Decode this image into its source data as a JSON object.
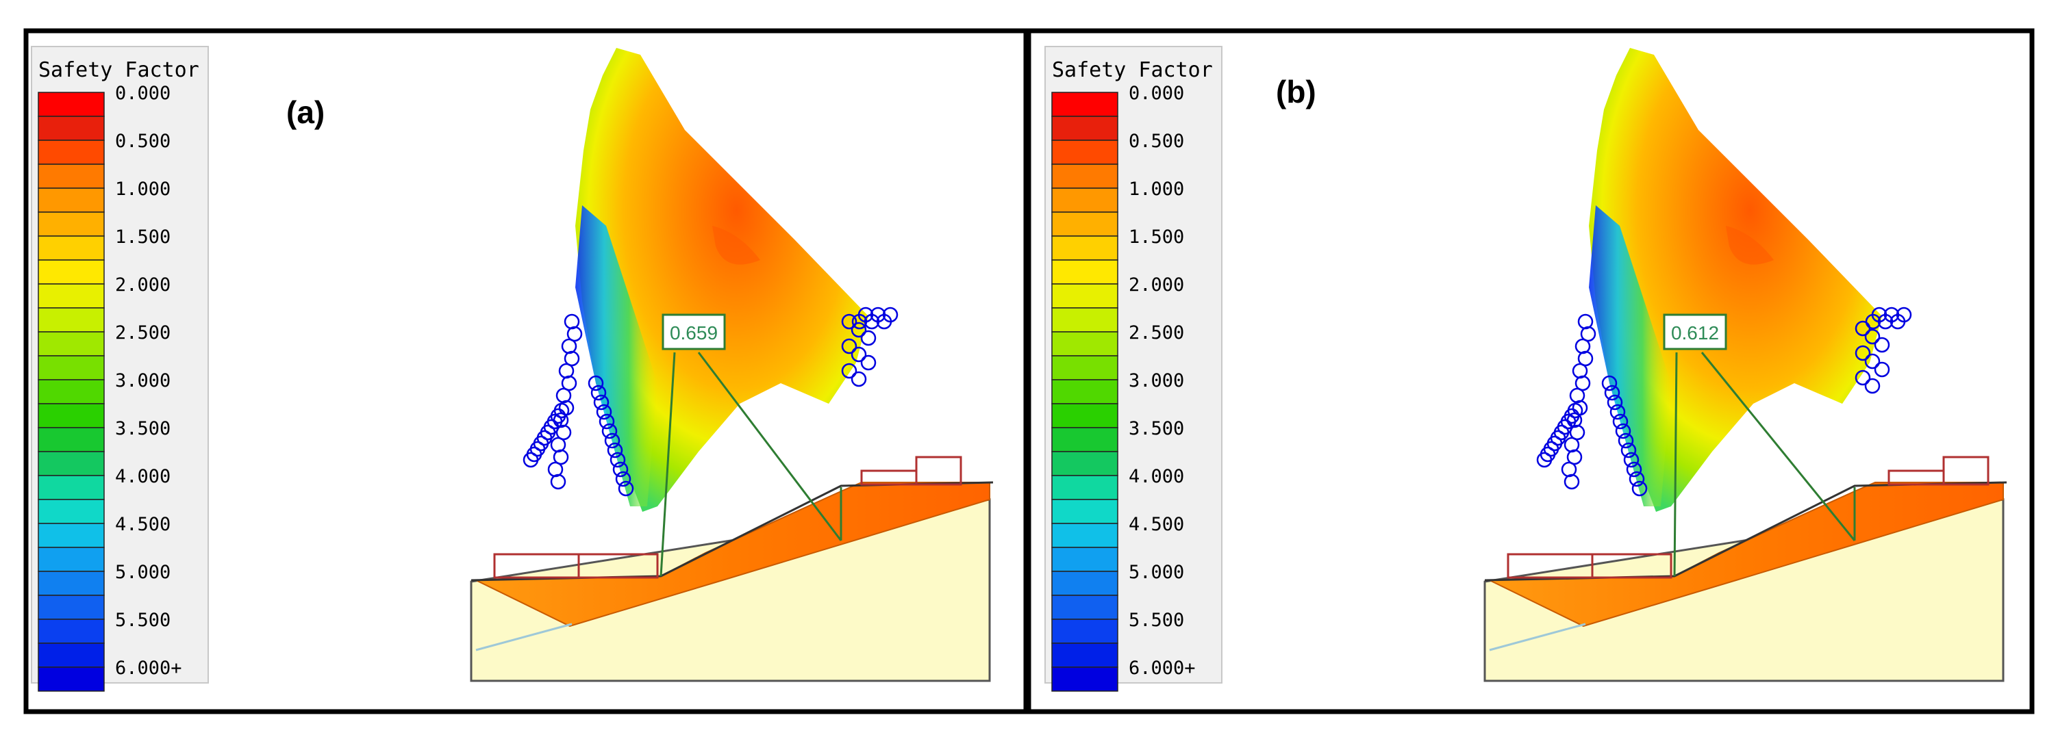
{
  "panels": [
    {
      "label": "(a)",
      "factor_of_safety": "0.659",
      "legend": {
        "title": "Safety Factor",
        "ticks": [
          "0.000",
          "0.500",
          "1.000",
          "1.500",
          "2.000",
          "2.500",
          "3.000",
          "3.500",
          "4.000",
          "4.500",
          "5.000",
          "5.500",
          "6.000+"
        ]
      }
    },
    {
      "label": "(b)",
      "factor_of_safety": "0.612",
      "legend": {
        "title": "Safety Factor",
        "ticks": [
          "0.000",
          "0.500",
          "1.000",
          "1.500",
          "2.000",
          "2.500",
          "3.000",
          "3.500",
          "4.000",
          "4.500",
          "5.000",
          "5.500",
          "6.000+"
        ]
      }
    }
  ],
  "colorscale": [
    "#ff0000",
    "#e8200c",
    "#ff4a00",
    "#ff7a00",
    "#ff9800",
    "#ffb000",
    "#ffd000",
    "#ffe800",
    "#e8f000",
    "#c8f000",
    "#a0e800",
    "#78e000",
    "#50d800",
    "#2ad000",
    "#18c830",
    "#14c860",
    "#10d8a0",
    "#10d8c8",
    "#10c0e8",
    "#10a0f0",
    "#1080f0",
    "#1060f0",
    "#0a40f0",
    "#0020e8",
    "#0000e0"
  ],
  "colors": {
    "frame": "#000000",
    "slope_fill": "#fdfac8",
    "slip_orange": "#ff7f0e",
    "annotation_line": "#2e7d32",
    "load_red": "#b03030",
    "fs_text": "#2e8b57"
  }
}
